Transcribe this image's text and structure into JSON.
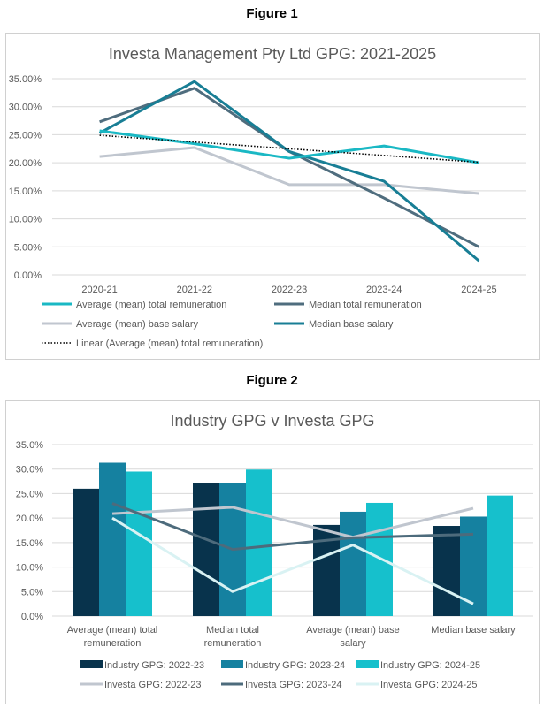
{
  "figures": [
    {
      "label": "Figure 1"
    },
    {
      "label": "Figure 2"
    }
  ],
  "chart_data": [
    {
      "type": "line",
      "title": "Investa Management Pty Ltd GPG: 2021-2025",
      "categories": [
        "2020-21",
        "2021-22",
        "2022-23",
        "2023-24",
        "2024-25"
      ],
      "ylim": [
        0,
        35
      ],
      "yticks": [
        "0.00%",
        "5.00%",
        "10.00%",
        "15.00%",
        "20.00%",
        "25.00%",
        "30.00%",
        "35.00%"
      ],
      "grid": true,
      "legend": "bottom",
      "series": [
        {
          "name": "Average (mean) total remuneration",
          "color": "#1ab8c4",
          "values": [
            25.7,
            23.4,
            20.8,
            23.0,
            20.0
          ]
        },
        {
          "name": "Median total remuneration",
          "color": "#4f6d7e",
          "values": [
            27.3,
            33.3,
            22.0,
            13.7,
            5.0
          ]
        },
        {
          "name": "Average (mean) base salary",
          "color": "#c0c6cf",
          "values": [
            21.1,
            22.7,
            16.1,
            16.1,
            14.5
          ]
        },
        {
          "name": "Median base salary",
          "color": "#187e95",
          "values": [
            25.3,
            34.5,
            22.0,
            16.7,
            2.5
          ]
        },
        {
          "name": "Linear (Average (mean) total remuneration)",
          "color": "#000000",
          "dotted": true,
          "values": [
            24.9,
            23.7,
            22.5,
            21.3,
            20.1
          ]
        }
      ]
    },
    {
      "type": "bar",
      "title": "Industry GPG v Investa GPG",
      "categories": [
        [
          "Average (mean) total",
          "remuneration"
        ],
        [
          "Median total",
          "remuneration"
        ],
        [
          "Average (mean) base",
          "salary"
        ],
        [
          "Median base salary"
        ]
      ],
      "ylim": [
        0,
        35
      ],
      "yticks": [
        "0.0%",
        "5.0%",
        "10.0%",
        "15.0%",
        "20.0%",
        "25.0%",
        "30.0%",
        "35.0%"
      ],
      "grid": true,
      "legend": "bottom",
      "bar_series": [
        {
          "name": "Industry GPG: 2022-23",
          "color": "#08334c",
          "values": [
            26.0,
            27.1,
            18.6,
            18.4
          ]
        },
        {
          "name": "Industry GPG: 2023-24",
          "color": "#1581a0",
          "values": [
            31.3,
            27.1,
            21.3,
            20.3
          ]
        },
        {
          "name": "Industry GPG: 2024-25",
          "color": "#16c0cc",
          "values": [
            29.5,
            29.9,
            23.1,
            24.6
          ]
        }
      ],
      "line_series": [
        {
          "name": "Investa GPG: 2022-23",
          "color": "#c0c6cf",
          "values": [
            20.9,
            22.2,
            16.1,
            22.0
          ]
        },
        {
          "name": "Investa GPG: 2023-24",
          "color": "#4d6b7c",
          "values": [
            23.0,
            13.6,
            16.0,
            16.7
          ]
        },
        {
          "name": "Investa GPG: 2024-25",
          "color": "#d9f2f3",
          "values": [
            20.0,
            5.0,
            14.5,
            2.5
          ]
        }
      ]
    }
  ]
}
